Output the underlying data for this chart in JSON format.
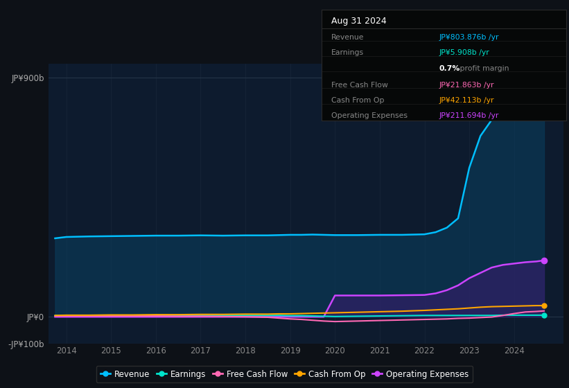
{
  "bg_color": "#0d1117",
  "plot_bg_color": "#0d1b2e",
  "grid_color": "#243447",
  "years": [
    2013.75,
    2014.0,
    2014.5,
    2015.0,
    2015.5,
    2016.0,
    2016.5,
    2017.0,
    2017.5,
    2018.0,
    2018.5,
    2018.75,
    2019.0,
    2019.25,
    2019.5,
    2019.75,
    2020.0,
    2020.5,
    2021.0,
    2021.5,
    2022.0,
    2022.25,
    2022.5,
    2022.75,
    2023.0,
    2023.25,
    2023.5,
    2023.75,
    2024.0,
    2024.25,
    2024.5,
    2024.67
  ],
  "revenue": [
    295,
    300,
    302,
    303,
    304,
    305,
    305,
    306,
    305,
    306,
    306,
    307,
    308,
    308,
    309,
    308,
    307,
    307,
    308,
    308,
    310,
    318,
    335,
    370,
    560,
    680,
    740,
    760,
    775,
    785,
    800,
    804
  ],
  "earnings": [
    5,
    5,
    5,
    5,
    5,
    5,
    5,
    5,
    5,
    5,
    5,
    5,
    4,
    4,
    3,
    2,
    1,
    2,
    3,
    4,
    5,
    5,
    5,
    5,
    5,
    5,
    5,
    6,
    6,
    6,
    6,
    6
  ],
  "free_cash_flow": [
    3,
    3,
    3,
    3,
    3,
    3,
    2,
    2,
    1,
    0,
    -2,
    -5,
    -8,
    -10,
    -13,
    -16,
    -18,
    -16,
    -14,
    -12,
    -10,
    -9,
    -8,
    -6,
    -5,
    -3,
    -1,
    5,
    12,
    18,
    20,
    22
  ],
  "cash_from_op": [
    5,
    6,
    6,
    7,
    7,
    8,
    8,
    9,
    9,
    10,
    10,
    11,
    11,
    12,
    13,
    14,
    15,
    17,
    19,
    21,
    24,
    26,
    28,
    30,
    33,
    36,
    38,
    39,
    40,
    41,
    42,
    42
  ],
  "operating_exp": [
    0,
    0,
    0,
    0,
    0,
    0,
    0,
    0,
    0,
    0,
    0,
    0,
    0,
    0,
    0,
    0,
    80,
    80,
    80,
    81,
    82,
    88,
    100,
    118,
    145,
    165,
    185,
    195,
    200,
    205,
    208,
    212
  ],
  "revenue_color": "#00bfff",
  "earnings_color": "#00e5cc",
  "free_cash_color": "#ff69b4",
  "cash_op_color": "#ffa500",
  "op_exp_color": "#cc44ff",
  "ylim_min": -100,
  "ylim_max": 950,
  "xlim_min": 2013.6,
  "xlim_max": 2025.1,
  "xticks": [
    2014,
    2015,
    2016,
    2017,
    2018,
    2019,
    2020,
    2021,
    2022,
    2023,
    2024
  ],
  "ytick_vals": [
    -100,
    0,
    900
  ],
  "ytick_labels": [
    "-JP¥100b",
    "JP¥0",
    "JP¥900b"
  ],
  "legend_labels": [
    "Revenue",
    "Earnings",
    "Free Cash Flow",
    "Cash From Op",
    "Operating Expenses"
  ],
  "legend_colors": [
    "#00bfff",
    "#00e5cc",
    "#ff69b4",
    "#ffa500",
    "#cc44ff"
  ],
  "info_date": "Aug 31 2024",
  "info_rows": [
    {
      "label": "Revenue",
      "value": "JP¥803.876b /yr",
      "color": "#00bfff"
    },
    {
      "label": "Earnings",
      "value": "JP¥5.908b /yr",
      "color": "#00e5cc"
    },
    {
      "label": "",
      "value": "0.7% profit margin",
      "color": "#ffffff"
    },
    {
      "label": "Free Cash Flow",
      "value": "JP¥21.863b /yr",
      "color": "#ff69b4"
    },
    {
      "label": "Cash From Op",
      "value": "JP¥42.113b /yr",
      "color": "#ffa500"
    },
    {
      "label": "Operating Expenses",
      "value": "JP¥211.694b /yr",
      "color": "#cc44ff"
    }
  ]
}
